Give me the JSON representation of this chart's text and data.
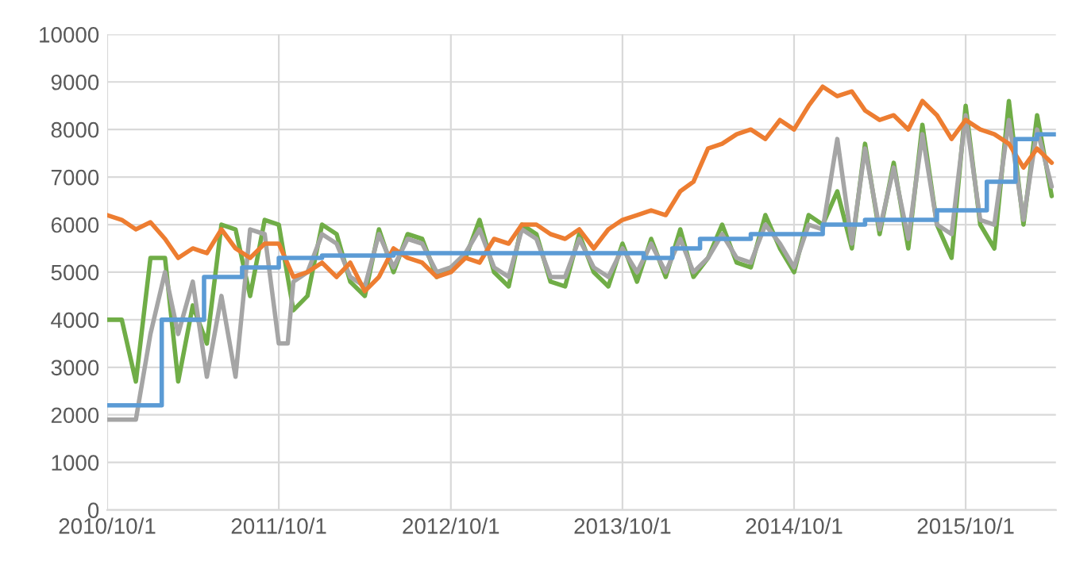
{
  "chart_data": {
    "type": "line",
    "x": [
      "2010-10",
      "2010-11",
      "2010-12",
      "2011-01",
      "2011-02",
      "2011-03",
      "2011-04",
      "2011-05",
      "2011-06",
      "2011-07",
      "2011-08",
      "2011-09",
      "2011-10",
      "2011-11",
      "2011-12",
      "2012-01",
      "2012-02",
      "2012-03",
      "2012-04",
      "2012-05",
      "2012-06",
      "2012-07",
      "2012-08",
      "2012-09",
      "2012-10",
      "2012-11",
      "2012-12",
      "2013-01",
      "2013-02",
      "2013-03",
      "2013-04",
      "2013-05",
      "2013-06",
      "2013-07",
      "2013-08",
      "2013-09",
      "2013-10",
      "2013-11",
      "2013-12",
      "2014-01",
      "2014-02",
      "2014-03",
      "2014-04",
      "2014-05",
      "2014-06",
      "2014-07",
      "2014-08",
      "2014-09",
      "2014-10",
      "2014-11",
      "2014-12",
      "2015-01",
      "2015-02",
      "2015-03",
      "2015-04",
      "2015-05",
      "2015-06",
      "2015-07",
      "2015-08",
      "2015-09",
      "2015-10",
      "2015-11",
      "2015-12",
      "2016-01",
      "2016-02",
      "2016-03",
      "2016-04"
    ],
    "series": [
      {
        "color": "#70ad47",
        "values": [
          4000,
          4000,
          2700,
          5300,
          5300,
          2700,
          4300,
          3500,
          6000,
          5900,
          4500,
          6100,
          6000,
          4200,
          4500,
          6000,
          5800,
          4800,
          4500,
          5900,
          5000,
          5800,
          5700,
          4900,
          5100,
          5300,
          6100,
          5000,
          4700,
          6000,
          5800,
          4800,
          4700,
          5800,
          5000,
          4700,
          5600,
          4800,
          5700,
          4900,
          5900,
          4900,
          5300,
          6000,
          5200,
          5100,
          6200,
          5500,
          5000,
          6200,
          6000,
          6700,
          5500,
          7700,
          5800,
          7300,
          5500,
          8100,
          6000,
          5300,
          8500,
          6000,
          5500,
          8600,
          6000,
          8300,
          6600
        ]
      },
      {
        "color": "#a5a5a5",
        "x": [
          "2010-10",
          "2010-11",
          "2010-12",
          "2011-01",
          "2011-02",
          "2011-03",
          "2011-04",
          "2011-05",
          "2011-06",
          "2011-07",
          "2011-08",
          "2011-09",
          "2011-10-01",
          "2011-10-20",
          "2011-11",
          "2011-12",
          "2012-01",
          "2012-02",
          "2012-03",
          "2012-04",
          "2012-05",
          "2012-06",
          "2012-07",
          "2012-08",
          "2012-09",
          "2012-10",
          "2012-11",
          "2012-12",
          "2013-01",
          "2013-02",
          "2013-03",
          "2013-04",
          "2013-05",
          "2013-06",
          "2013-07",
          "2013-08",
          "2013-09",
          "2013-10",
          "2013-11",
          "2013-12",
          "2014-01",
          "2014-02",
          "2014-03",
          "2014-04",
          "2014-05",
          "2014-06",
          "2014-07",
          "2014-08",
          "2014-09",
          "2014-10",
          "2014-11",
          "2014-12",
          "2015-01",
          "2015-02",
          "2015-03",
          "2015-04",
          "2015-05",
          "2015-06",
          "2015-07",
          "2015-08",
          "2015-09",
          "2015-10",
          "2015-11",
          "2015-12",
          "2016-01",
          "2016-02",
          "2016-03",
          "2016-04"
        ],
        "values": [
          1900,
          1900,
          1900,
          3700,
          5000,
          3700,
          4800,
          2800,
          4500,
          2800,
          5900,
          5800,
          3500,
          3500,
          4800,
          5000,
          5800,
          5600,
          4900,
          4700,
          5800,
          5100,
          5700,
          5600,
          5000,
          5100,
          5400,
          5900,
          5100,
          4900,
          5900,
          5700,
          4900,
          4900,
          5700,
          5100,
          4900,
          5500,
          5000,
          5600,
          5000,
          5700,
          5000,
          5300,
          5800,
          5300,
          5200,
          6000,
          5600,
          5100,
          6000,
          5900,
          7800,
          5600,
          7600,
          5900,
          7200,
          5700,
          7900,
          6000,
          5800,
          8300,
          6100,
          6000,
          8200,
          6100,
          8000,
          6800
        ]
      },
      {
        "color": "#ed7d31",
        "values": [
          6200,
          6100,
          5900,
          6050,
          5700,
          5300,
          5500,
          5400,
          5900,
          5500,
          5300,
          5600,
          5600,
          4900,
          5000,
          5200,
          4900,
          5200,
          4600,
          4900,
          5500,
          5300,
          5200,
          4900,
          5000,
          5300,
          5200,
          5700,
          5600,
          6000,
          6000,
          5800,
          5700,
          5900,
          5500,
          5900,
          6100,
          6200,
          6300,
          6200,
          6700,
          6900,
          7600,
          7700,
          7900,
          8000,
          7800,
          8200,
          8000,
          8500,
          8900,
          8700,
          8800,
          8400,
          8200,
          8300,
          8000,
          8600,
          8300,
          7800,
          8200,
          8000,
          7900,
          7700,
          7200,
          7600,
          7300
        ]
      },
      {
        "type": "step",
        "color": "#5b9bd5",
        "x": [
          "2010-10-01",
          "2011-01-25",
          "2011-04-25",
          "2011-07-15",
          "2011-10-01",
          "2012-01-01",
          "2012-06-01",
          "2013-11-15",
          "2014-01-15",
          "2014-03-15",
          "2014-07-01",
          "2014-12-01",
          "2015-03-01",
          "2015-08-01",
          "2015-11-15",
          "2016-01-15",
          "2016-03-01",
          "2016-04-10"
        ],
        "values": [
          2200,
          4000,
          4900,
          5100,
          5300,
          5350,
          5400,
          5300,
          5500,
          5700,
          5800,
          6000,
          6100,
          6300,
          6900,
          7800,
          7900,
          7900
        ]
      }
    ],
    "xlim": [
      "2010-10-01",
      "2016-04-10"
    ],
    "xticks": [
      {
        "value": "2010-10-01",
        "label": "2010/10/1"
      },
      {
        "value": "2011-10-01",
        "label": "2011/10/1"
      },
      {
        "value": "2012-10-01",
        "label": "2012/10/1"
      },
      {
        "value": "2013-10-01",
        "label": "2013/10/1"
      },
      {
        "value": "2014-10-01",
        "label": "2014/10/1"
      },
      {
        "value": "2015-10-01",
        "label": "2015/10/1"
      }
    ],
    "ylim": [
      0,
      10000
    ],
    "yticks": [
      0,
      1000,
      2000,
      3000,
      4000,
      5000,
      6000,
      7000,
      8000,
      9000,
      10000
    ],
    "grid": true
  }
}
